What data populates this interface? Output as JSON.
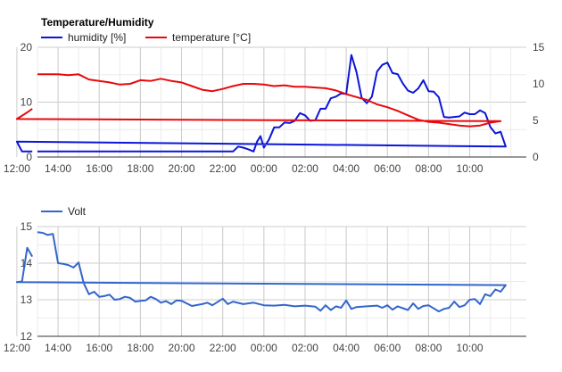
{
  "chart_data": [
    {
      "type": "line",
      "title": "Temperature/Humidity",
      "x_ticks": [
        "14:00",
        "16:00",
        "18:00",
        "20:00",
        "22:00",
        "00:00",
        "02:00",
        "04:00",
        "06:00",
        "08:00",
        "10:00",
        "12:00"
      ],
      "y_left": {
        "ticks": [
          0,
          10,
          20
        ],
        "ylim": [
          0,
          20
        ]
      },
      "y_right": {
        "ticks": [
          0,
          5,
          10,
          15
        ],
        "ylim": [
          0,
          15
        ]
      },
      "grid": true,
      "legend_position": "top",
      "series": [
        {
          "name": "humidity [%]",
          "axis": "left",
          "color": "#0b16d8",
          "x": [
            "13:00",
            "21:30",
            "22:30",
            "22:45",
            "23:00",
            "23:15",
            "23:30",
            "23:40",
            "23:50",
            "00:00",
            "00:15",
            "00:30",
            "00:45",
            "01:00",
            "01:15",
            "01:30",
            "01:45",
            "02:00",
            "02:15",
            "02:30",
            "02:45",
            "03:00",
            "03:15",
            "03:30",
            "03:45",
            "04:00",
            "04:15",
            "04:30",
            "04:45",
            "05:00",
            "05:15",
            "05:30",
            "05:45",
            "06:00",
            "06:15",
            "06:30",
            "06:45",
            "07:00",
            "07:15",
            "07:30",
            "07:45",
            "08:00",
            "08:15",
            "08:30",
            "08:45",
            "09:00",
            "09:15",
            "09:30",
            "09:45",
            "10:00",
            "10:15",
            "10:30",
            "10:45",
            "11:00",
            "11:15",
            "11:30",
            "11:45",
            "12:00",
            "12:15",
            "12:30",
            "12:45"
          ],
          "values": [
            1.0,
            1.0,
            1.0,
            1.9,
            1.7,
            1.4,
            1.0,
            2.8,
            3.8,
            1.7,
            3.2,
            5.4,
            5.4,
            6.3,
            6.2,
            6.6,
            8.0,
            7.6,
            6.6,
            6.7,
            8.8,
            8.8,
            10.7,
            11.0,
            11.6,
            11.5,
            18.6,
            15.5,
            10.8,
            9.8,
            11.0,
            15.6,
            16.8,
            17.2,
            15.3,
            15.1,
            13.4,
            12.1,
            11.7,
            12.5,
            14.0,
            12.0,
            11.9,
            10.9,
            7.3,
            7.2,
            7.3,
            7.4,
            8.1,
            7.8,
            7.8,
            8.5,
            8.0,
            5.5,
            4.3,
            4.6,
            1.9,
            2.8,
            1.0,
            1.0,
            1.0
          ]
        },
        {
          "name": "temperature [°C]",
          "axis": "right",
          "color": "#e8090c",
          "x": [
            "13:00",
            "13:30",
            "14:00",
            "14:30",
            "15:00",
            "15:30",
            "16:00",
            "16:30",
            "17:00",
            "17:30",
            "18:00",
            "18:30",
            "19:00",
            "19:30",
            "20:00",
            "20:30",
            "21:00",
            "21:30",
            "22:00",
            "22:30",
            "23:00",
            "23:30",
            "00:00",
            "00:30",
            "01:00",
            "01:30",
            "02:00",
            "02:30",
            "03:00",
            "03:30",
            "04:00",
            "04:30",
            "05:00",
            "05:30",
            "06:00",
            "06:30",
            "07:00",
            "07:30",
            "08:00",
            "08:30",
            "09:00",
            "09:30",
            "10:00",
            "10:30",
            "11:00",
            "11:30",
            "12:00",
            "12:30",
            "12:45"
          ],
          "values": [
            11.3,
            11.3,
            11.3,
            11.2,
            11.3,
            10.6,
            10.4,
            10.2,
            9.9,
            10.0,
            10.5,
            10.4,
            10.7,
            10.4,
            10.2,
            9.7,
            9.2,
            9.0,
            9.3,
            9.7,
            10.0,
            10.0,
            9.9,
            9.7,
            9.8,
            9.6,
            9.6,
            9.5,
            9.4,
            9.1,
            8.6,
            8.2,
            7.8,
            7.2,
            6.8,
            6.3,
            5.7,
            5.1,
            4.8,
            4.7,
            4.5,
            4.3,
            4.2,
            4.3,
            4.7,
            4.9,
            5.2,
            6.1,
            6.6
          ]
        }
      ]
    },
    {
      "type": "line",
      "title": "",
      "x_ticks": [
        "14:00",
        "16:00",
        "18:00",
        "20:00",
        "22:00",
        "00:00",
        "02:00",
        "04:00",
        "06:00",
        "08:00",
        "10:00",
        "12:00"
      ],
      "y_left": {
        "ticks": [
          12,
          13,
          14,
          15
        ],
        "ylim": [
          12,
          15
        ]
      },
      "grid": true,
      "legend_position": "top",
      "series": [
        {
          "name": "Volt",
          "axis": "left",
          "color": "#3366cc",
          "x": [
            "13:00",
            "13:15",
            "13:30",
            "13:45",
            "14:00",
            "14:15",
            "14:30",
            "14:45",
            "15:00",
            "15:15",
            "15:30",
            "15:45",
            "16:00",
            "16:15",
            "16:30",
            "16:45",
            "17:00",
            "17:15",
            "17:30",
            "17:45",
            "18:00",
            "18:15",
            "18:30",
            "18:45",
            "19:00",
            "19:15",
            "19:30",
            "19:45",
            "20:00",
            "20:30",
            "21:00",
            "21:15",
            "21:30",
            "22:00",
            "22:15",
            "22:30",
            "23:00",
            "23:30",
            "00:00",
            "00:30",
            "01:00",
            "01:30",
            "02:00",
            "02:30",
            "02:45",
            "03:00",
            "03:15",
            "03:30",
            "03:45",
            "04:00",
            "04:15",
            "04:30",
            "05:00",
            "05:30",
            "05:45",
            "06:00",
            "06:15",
            "06:30",
            "07:00",
            "07:15",
            "07:30",
            "07:45",
            "08:00",
            "08:30",
            "08:45",
            "09:00",
            "09:15",
            "09:30",
            "09:45",
            "10:00",
            "10:15",
            "10:30",
            "10:45",
            "11:00",
            "11:15",
            "11:30",
            "11:45",
            "12:00",
            "12:15",
            "12:30",
            "12:45"
          ],
          "values": [
            14.85,
            14.83,
            14.77,
            14.8,
            14.0,
            13.98,
            13.95,
            13.88,
            14.02,
            13.45,
            13.15,
            13.22,
            13.08,
            13.1,
            13.14,
            13.0,
            13.02,
            13.08,
            13.05,
            12.95,
            12.97,
            12.98,
            13.08,
            13.02,
            12.92,
            12.96,
            12.88,
            12.98,
            12.97,
            12.83,
            12.88,
            12.92,
            12.85,
            13.03,
            12.88,
            12.95,
            12.88,
            12.92,
            12.85,
            12.84,
            12.86,
            12.82,
            12.84,
            12.81,
            12.7,
            12.85,
            12.72,
            12.82,
            12.78,
            12.98,
            12.75,
            12.8,
            12.82,
            12.84,
            12.78,
            12.85,
            12.73,
            12.82,
            12.72,
            12.9,
            12.75,
            12.83,
            12.85,
            12.68,
            12.75,
            12.78,
            12.95,
            12.8,
            12.85,
            13.0,
            13.02,
            12.88,
            13.15,
            13.1,
            13.28,
            13.22,
            13.4,
            13.48,
            13.5,
            14.42,
            14.18
          ]
        }
      ]
    }
  ]
}
